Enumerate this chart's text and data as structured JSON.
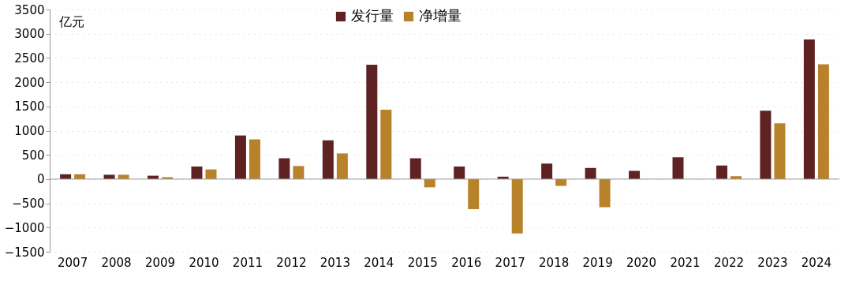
{
  "chart_data": {
    "type": "bar",
    "categories": [
      "2007",
      "2008",
      "2009",
      "2010",
      "2011",
      "2012",
      "2013",
      "2014",
      "2015",
      "2016",
      "2017",
      "2018",
      "2019",
      "2020",
      "2021",
      "2022",
      "2023",
      "2024"
    ],
    "series": [
      {
        "name": "发行量",
        "color": "#5e2222",
        "values": [
          100,
          90,
          70,
          260,
          900,
          430,
          800,
          2360,
          430,
          260,
          50,
          320,
          230,
          170,
          450,
          280,
          1410,
          2880
        ]
      },
      {
        "name": "净增量",
        "color": "#b8822a",
        "values": [
          100,
          90,
          40,
          200,
          820,
          270,
          530,
          1430,
          -170,
          -620,
          -1120,
          -140,
          -580,
          0,
          0,
          60,
          1150,
          2370
        ]
      }
    ],
    "ylim": [
      -1500,
      3500
    ],
    "yticks": [
      -1500,
      -1000,
      -500,
      0,
      500,
      1000,
      1500,
      2000,
      2500,
      3000,
      3500
    ],
    "annotations": [
      "亿元"
    ],
    "legend": "top",
    "grid": "y"
  }
}
